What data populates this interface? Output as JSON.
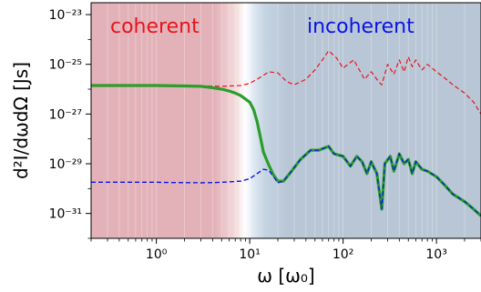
{
  "chart_data": {
    "type": "line",
    "xlabel": "ω [ω₀]",
    "ylabel": "d²I/dωdΩ [Js]",
    "x_scale": "log",
    "y_scale": "log",
    "xlim": [
      0.2,
      3000
    ],
    "ylim": [
      1e-32,
      3e-23
    ],
    "x_ticks": [
      {
        "value": 1,
        "label": "10⁰"
      },
      {
        "value": 10,
        "label": "10¹"
      },
      {
        "value": 100,
        "label": "10²"
      },
      {
        "value": 1000,
        "label": "10³"
      }
    ],
    "y_ticks": [
      {
        "value": 1e-31,
        "label": "10⁻³¹"
      },
      {
        "value": 1e-29,
        "label": "10⁻²⁹"
      },
      {
        "value": 1e-27,
        "label": "10⁻²⁷"
      },
      {
        "value": 1e-25,
        "label": "10⁻²⁵"
      },
      {
        "value": 1e-23,
        "label": "10⁻²³"
      }
    ],
    "regions": [
      {
        "label": "coherent",
        "label_color": "#e8141c",
        "x_range": [
          0.2,
          10
        ],
        "color": "#e3b2b9"
      },
      {
        "label": "incoherent",
        "label_color": "#0a14e6",
        "x_range": [
          10,
          3000
        ],
        "color": "#b9c6d6"
      }
    ],
    "series": [
      {
        "style": "dashed",
        "color": "#e8141c",
        "points": [
          [
            0.2,
            1.4e-26
          ],
          [
            1,
            1.4e-26
          ],
          [
            3,
            1.35e-26
          ],
          [
            5,
            1.3e-26
          ],
          [
            8,
            1.4e-26
          ],
          [
            10,
            1.7e-26
          ],
          [
            13,
            3e-26
          ],
          [
            16,
            5e-26
          ],
          [
            20,
            4.5e-26
          ],
          [
            25,
            2e-26
          ],
          [
            30,
            1.5e-26
          ],
          [
            40,
            2.5e-26
          ],
          [
            50,
            6e-26
          ],
          [
            60,
            1.5e-25
          ],
          [
            70,
            3.5e-25
          ],
          [
            85,
            1.8e-25
          ],
          [
            100,
            7e-26
          ],
          [
            130,
            1.5e-25
          ],
          [
            170,
            2.5e-26
          ],
          [
            200,
            5e-26
          ],
          [
            240,
            2e-26
          ],
          [
            260,
            1.5e-26
          ],
          [
            300,
            1e-25
          ],
          [
            350,
            4e-26
          ],
          [
            400,
            1.5e-25
          ],
          [
            450,
            5e-26
          ],
          [
            500,
            2e-25
          ],
          [
            550,
            8e-26
          ],
          [
            600,
            1.5e-25
          ],
          [
            700,
            6e-26
          ],
          [
            800,
            1e-25
          ],
          [
            1000,
            5e-26
          ],
          [
            1200,
            3e-26
          ],
          [
            1500,
            1.5e-26
          ],
          [
            2000,
            7e-27
          ],
          [
            2500,
            3e-27
          ],
          [
            3000,
            1e-27
          ]
        ]
      },
      {
        "style": "dashed",
        "color": "#0a14e6",
        "points": [
          [
            0.2,
            1.8e-30
          ],
          [
            1,
            1.8e-30
          ],
          [
            3,
            1.7e-30
          ],
          [
            5,
            1.8e-30
          ],
          [
            8,
            2e-30
          ],
          [
            10,
            2.5e-30
          ],
          [
            12,
            4e-30
          ],
          [
            14,
            6e-30
          ],
          [
            16,
            5.5e-30
          ],
          [
            18,
            3e-30
          ],
          [
            20,
            1.7e-30
          ],
          [
            23,
            2e-30
          ],
          [
            28,
            5e-30
          ],
          [
            35,
            1.5e-29
          ],
          [
            45,
            3.5e-29
          ],
          [
            55,
            3.5e-29
          ],
          [
            70,
            5e-29
          ],
          [
            80,
            2.5e-29
          ],
          [
            100,
            2e-29
          ],
          [
            120,
            8e-30
          ],
          [
            140,
            2e-29
          ],
          [
            160,
            1.2e-29
          ],
          [
            180,
            4e-30
          ],
          [
            200,
            1.2e-29
          ],
          [
            230,
            4e-30
          ],
          [
            260,
            1.5e-31
          ],
          [
            280,
            1e-29
          ],
          [
            320,
            2e-29
          ],
          [
            350,
            5e-30
          ],
          [
            400,
            2.5e-29
          ],
          [
            450,
            1e-29
          ],
          [
            500,
            1.5e-29
          ],
          [
            550,
            4e-30
          ],
          [
            600,
            1.2e-29
          ],
          [
            700,
            6e-30
          ],
          [
            800,
            5e-30
          ],
          [
            1000,
            3e-30
          ],
          [
            1200,
            1.5e-30
          ],
          [
            1500,
            6e-31
          ],
          [
            2000,
            3e-31
          ],
          [
            2500,
            1.5e-31
          ],
          [
            3000,
            8e-32
          ]
        ]
      },
      {
        "style": "solid",
        "color": "#2a9d2a",
        "points": [
          [
            0.2,
            1.4e-26
          ],
          [
            1,
            1.4e-26
          ],
          [
            2,
            1.35e-26
          ],
          [
            3,
            1.3e-26
          ],
          [
            4,
            1.15e-26
          ],
          [
            5,
            1e-26
          ],
          [
            6,
            8.5e-27
          ],
          [
            7,
            7e-27
          ],
          [
            8,
            5.5e-27
          ],
          [
            10,
            3e-27
          ],
          [
            11,
            1.5e-27
          ],
          [
            12,
            5e-28
          ],
          [
            13,
            1.2e-28
          ],
          [
            14,
            3e-29
          ],
          [
            16,
            9e-30
          ],
          [
            18,
            3.5e-30
          ],
          [
            20,
            2e-30
          ],
          [
            23,
            2e-30
          ],
          [
            28,
            5e-30
          ],
          [
            35,
            1.5e-29
          ],
          [
            45,
            3.5e-29
          ],
          [
            55,
            3.5e-29
          ],
          [
            70,
            5e-29
          ],
          [
            80,
            2.5e-29
          ],
          [
            100,
            2e-29
          ],
          [
            120,
            8e-30
          ],
          [
            140,
            2e-29
          ],
          [
            160,
            1.2e-29
          ],
          [
            180,
            4e-30
          ],
          [
            200,
            1.2e-29
          ],
          [
            230,
            4e-30
          ],
          [
            260,
            1.5e-31
          ],
          [
            280,
            1e-29
          ],
          [
            320,
            2e-29
          ],
          [
            350,
            5e-30
          ],
          [
            400,
            2.5e-29
          ],
          [
            450,
            1e-29
          ],
          [
            500,
            1.5e-29
          ],
          [
            550,
            4e-30
          ],
          [
            600,
            1.2e-29
          ],
          [
            700,
            6e-30
          ],
          [
            800,
            5e-30
          ],
          [
            1000,
            3e-30
          ],
          [
            1200,
            1.5e-30
          ],
          [
            1500,
            6e-31
          ],
          [
            2000,
            3e-31
          ],
          [
            2500,
            1.5e-31
          ],
          [
            3000,
            8e-32
          ]
        ]
      }
    ]
  }
}
